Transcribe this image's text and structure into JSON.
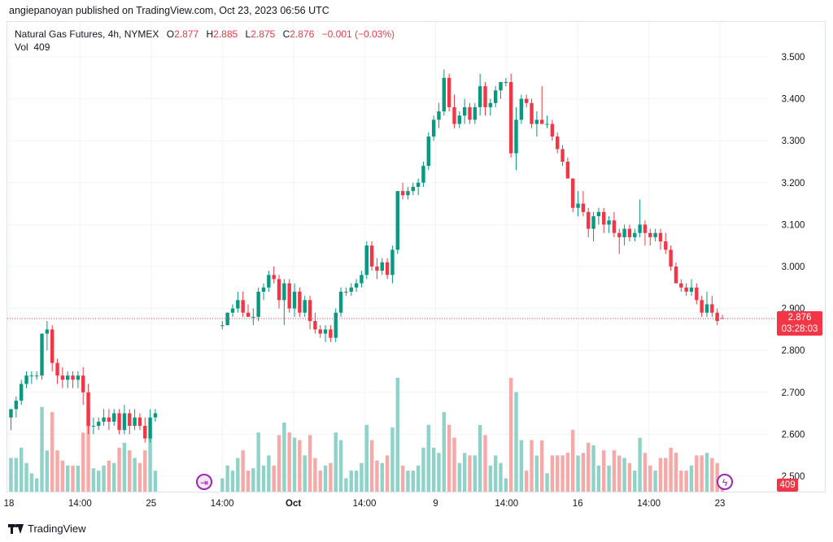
{
  "header": {
    "publisher_line": "angiepanoyan published on TradingView.com, Oct 23, 2023 06:56 UTC"
  },
  "legend": {
    "symbol": "Natural Gas Futures, 4h, NYMEX",
    "o_label": "O",
    "o_value": "2.877",
    "h_label": "H",
    "h_value": "2.885",
    "l_label": "L",
    "l_value": "2.875",
    "c_label": "C",
    "c_value": "2.876",
    "change": "−0.001 (−0.03%)",
    "vol_label": "Vol",
    "vol_value": "409"
  },
  "price_tag": {
    "price": "2.876",
    "countdown": "03:28:03"
  },
  "vol_tag": "409",
  "footer": {
    "brand": "TradingView"
  },
  "colors": {
    "up": "#089981",
    "down": "#f23645",
    "up_vol": "#8fd3c8",
    "down_vol": "#f7a9a7",
    "grid": "#f0f3fa",
    "accent": "#9c27b0"
  },
  "icons": {
    "replay": "replay-icon",
    "bolt": "lightning-icon",
    "logo": "tradingview-logo-icon"
  },
  "chart_data": {
    "type": "candlestick",
    "timeframe": "4h",
    "y_axis": {
      "ticks": [
        "3.500",
        "3.400",
        "3.300",
        "3.200",
        "3.100",
        "3.000",
        "2.900",
        "2.800",
        "2.700",
        "2.600",
        "2.500"
      ],
      "range": [
        2.47,
        3.56
      ]
    },
    "x_axis": {
      "ticks": [
        "18",
        "14:00",
        "25",
        "14:00",
        "Oct",
        "14:00",
        "9",
        "14:00",
        "16",
        "14:00",
        "23"
      ]
    },
    "last_price": 2.876,
    "segments": [
      {
        "gap_after": true,
        "candles": [
          [
            2.64,
            2.66,
            2.61,
            2.66
          ],
          [
            2.66,
            2.69,
            2.64,
            2.68
          ],
          [
            2.68,
            2.73,
            2.67,
            2.72
          ],
          [
            2.72,
            2.75,
            2.71,
            2.74
          ],
          [
            2.74,
            2.75,
            2.72,
            2.74
          ],
          [
            2.74,
            2.75,
            2.73,
            2.74
          ],
          [
            2.74,
            2.84,
            2.73,
            2.84
          ],
          [
            2.84,
            2.87,
            2.8,
            2.85
          ],
          [
            2.85,
            2.86,
            2.75,
            2.77
          ],
          [
            2.77,
            2.78,
            2.72,
            2.74
          ],
          [
            2.74,
            2.76,
            2.71,
            2.73
          ],
          [
            2.73,
            2.75,
            2.71,
            2.74
          ],
          [
            2.74,
            2.75,
            2.71,
            2.73
          ],
          [
            2.73,
            2.75,
            2.71,
            2.74
          ],
          [
            2.74,
            2.76,
            2.67,
            2.7
          ],
          [
            2.7,
            2.72,
            2.6,
            2.62
          ],
          [
            2.62,
            2.64,
            2.6,
            2.62
          ],
          [
            2.62,
            2.64,
            2.61,
            2.63
          ],
          [
            2.63,
            2.66,
            2.62,
            2.64
          ],
          [
            2.64,
            2.66,
            2.61,
            2.63
          ],
          [
            2.63,
            2.66,
            2.62,
            2.65
          ],
          [
            2.65,
            2.66,
            2.6,
            2.61
          ],
          [
            2.61,
            2.67,
            2.6,
            2.65
          ],
          [
            2.65,
            2.66,
            2.6,
            2.62
          ],
          [
            2.62,
            2.66,
            2.61,
            2.64
          ],
          [
            2.64,
            2.65,
            2.61,
            2.62
          ],
          [
            2.62,
            2.64,
            2.58,
            2.59
          ],
          [
            2.59,
            2.66,
            2.58,
            2.64
          ],
          [
            2.64,
            2.66,
            2.63,
            2.65
          ]
        ]
      },
      {
        "gap_after": false,
        "candles": [
          [
            2.86,
            2.87,
            2.85,
            2.86
          ],
          [
            2.86,
            2.89,
            2.86,
            2.89
          ],
          [
            2.89,
            2.91,
            2.88,
            2.9
          ],
          [
            2.9,
            2.94,
            2.89,
            2.92
          ],
          [
            2.92,
            2.94,
            2.88,
            2.89
          ],
          [
            2.89,
            2.91,
            2.88,
            2.88
          ],
          [
            2.88,
            2.9,
            2.86,
            2.88
          ],
          [
            2.88,
            2.95,
            2.87,
            2.94
          ],
          [
            2.94,
            2.96,
            2.92,
            2.95
          ],
          [
            2.95,
            2.99,
            2.94,
            2.98
          ],
          [
            2.98,
            3.0,
            2.96,
            2.97
          ],
          [
            2.97,
            2.98,
            2.9,
            2.92
          ],
          [
            2.92,
            2.97,
            2.86,
            2.96
          ],
          [
            2.96,
            2.97,
            2.89,
            2.9
          ],
          [
            2.9,
            2.96,
            2.88,
            2.94
          ],
          [
            2.94,
            2.95,
            2.88,
            2.89
          ],
          [
            2.89,
            2.93,
            2.88,
            2.92
          ],
          [
            2.92,
            2.93,
            2.85,
            2.87
          ],
          [
            2.87,
            2.89,
            2.84,
            2.85
          ],
          [
            2.85,
            2.86,
            2.83,
            2.84
          ],
          [
            2.84,
            2.86,
            2.82,
            2.85
          ],
          [
            2.85,
            2.86,
            2.82,
            2.83
          ],
          [
            2.83,
            2.9,
            2.82,
            2.89
          ],
          [
            2.89,
            2.95,
            2.88,
            2.94
          ],
          [
            2.94,
            2.95,
            2.93,
            2.94
          ],
          [
            2.94,
            2.96,
            2.93,
            2.95
          ],
          [
            2.95,
            2.97,
            2.94,
            2.96
          ],
          [
            2.96,
            2.99,
            2.95,
            2.98
          ],
          [
            2.98,
            3.06,
            2.97,
            3.05
          ],
          [
            3.05,
            3.06,
            2.99,
            3.0
          ],
          [
            3.0,
            3.02,
            2.97,
            2.99
          ],
          [
            2.99,
            3.02,
            2.98,
            3.01
          ],
          [
            3.01,
            3.02,
            2.97,
            2.98
          ],
          [
            2.98,
            3.05,
            2.96,
            3.04
          ],
          [
            3.04,
            3.18,
            3.03,
            3.18
          ],
          [
            3.18,
            3.2,
            3.16,
            3.17
          ],
          [
            3.17,
            3.19,
            3.16,
            3.18
          ],
          [
            3.18,
            3.2,
            3.17,
            3.19
          ],
          [
            3.19,
            3.21,
            3.17,
            3.2
          ],
          [
            3.2,
            3.25,
            3.19,
            3.24
          ],
          [
            3.24,
            3.32,
            3.23,
            3.31
          ],
          [
            3.31,
            3.36,
            3.3,
            3.35
          ],
          [
            3.35,
            3.39,
            3.33,
            3.37
          ],
          [
            3.37,
            3.47,
            3.36,
            3.45
          ],
          [
            3.45,
            3.46,
            3.37,
            3.38
          ],
          [
            3.38,
            3.41,
            3.33,
            3.34
          ],
          [
            3.34,
            3.37,
            3.33,
            3.36
          ],
          [
            3.36,
            3.4,
            3.34,
            3.38
          ],
          [
            3.38,
            3.39,
            3.34,
            3.35
          ],
          [
            3.35,
            3.39,
            3.34,
            3.38
          ],
          [
            3.38,
            3.46,
            3.36,
            3.43
          ],
          [
            3.43,
            3.44,
            3.36,
            3.38
          ],
          [
            3.38,
            3.4,
            3.36,
            3.39
          ],
          [
            3.39,
            3.43,
            3.38,
            3.42
          ],
          [
            3.42,
            3.44,
            3.4,
            3.44
          ],
          [
            3.44,
            3.45,
            3.43,
            3.44
          ],
          [
            3.44,
            3.46,
            3.26,
            3.27
          ],
          [
            3.27,
            3.38,
            3.23,
            3.35
          ],
          [
            3.35,
            3.41,
            3.34,
            3.4
          ],
          [
            3.4,
            3.41,
            3.38,
            3.39
          ],
          [
            3.39,
            3.4,
            3.33,
            3.34
          ],
          [
            3.34,
            3.37,
            3.31,
            3.35
          ],
          [
            3.35,
            3.43,
            3.34,
            3.34
          ],
          [
            3.34,
            3.36,
            3.33,
            3.34
          ],
          [
            3.34,
            3.35,
            3.3,
            3.31
          ],
          [
            3.31,
            3.32,
            3.27,
            3.28
          ],
          [
            3.28,
            3.29,
            3.24,
            3.25
          ],
          [
            3.25,
            3.26,
            3.21,
            3.21
          ],
          [
            3.21,
            3.21,
            3.13,
            3.14
          ],
          [
            3.14,
            3.18,
            3.12,
            3.15
          ],
          [
            3.15,
            3.18,
            3.12,
            3.13
          ],
          [
            3.13,
            3.14,
            3.07,
            3.09
          ],
          [
            3.09,
            3.13,
            3.06,
            3.12
          ],
          [
            3.12,
            3.14,
            3.1,
            3.13
          ],
          [
            3.13,
            3.14,
            3.08,
            3.1
          ],
          [
            3.1,
            3.12,
            3.08,
            3.11
          ],
          [
            3.11,
            3.13,
            3.07,
            3.08
          ],
          [
            3.08,
            3.09,
            3.03,
            3.07
          ],
          [
            3.07,
            3.1,
            3.05,
            3.09
          ],
          [
            3.09,
            3.1,
            3.06,
            3.07
          ],
          [
            3.07,
            3.09,
            3.06,
            3.08
          ],
          [
            3.08,
            3.16,
            3.07,
            3.1
          ],
          [
            3.1,
            3.11,
            3.05,
            3.08
          ],
          [
            3.08,
            3.09,
            3.05,
            3.07
          ],
          [
            3.07,
            3.09,
            3.06,
            3.08
          ],
          [
            3.08,
            3.09,
            3.04,
            3.06
          ],
          [
            3.06,
            3.08,
            3.03,
            3.04
          ],
          [
            3.04,
            3.05,
            2.99,
            3.0
          ],
          [
            3.0,
            3.01,
            2.96,
            2.96
          ],
          [
            2.96,
            2.97,
            2.94,
            2.95
          ],
          [
            2.95,
            2.96,
            2.93,
            2.94
          ],
          [
            2.94,
            2.97,
            2.93,
            2.95
          ],
          [
            2.95,
            2.96,
            2.91,
            2.92
          ],
          [
            2.92,
            2.93,
            2.88,
            2.89
          ],
          [
            2.89,
            2.94,
            2.88,
            2.91
          ],
          [
            2.91,
            2.93,
            2.88,
            2.89
          ],
          [
            2.89,
            2.9,
            2.86,
            2.87
          ],
          [
            2.877,
            2.885,
            2.875,
            2.876
          ]
        ]
      }
    ]
  }
}
